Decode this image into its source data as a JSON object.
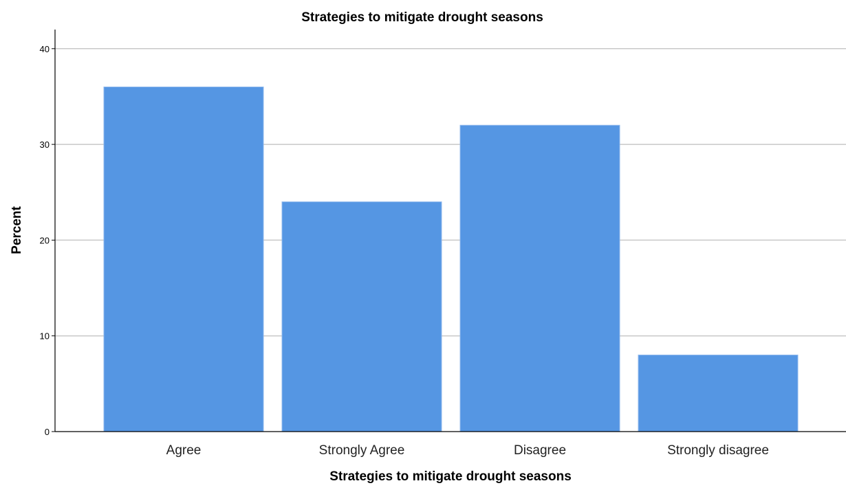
{
  "chart_data": {
    "type": "bar",
    "title": "Strategies to mitigate drought seasons",
    "xlabel": "Strategies to mitigate drought seasons",
    "ylabel": "Percent",
    "categories": [
      "Agree",
      "Strongly Agree",
      "Disagree",
      "Strongly disagree"
    ],
    "values": [
      36,
      24,
      32,
      8
    ],
    "ylim": [
      0,
      42
    ],
    "yticks": [
      0,
      10,
      20,
      30,
      40
    ],
    "ytick_labels": [
      "0",
      "10",
      "20",
      "30",
      "40"
    ],
    "grid": true,
    "legend": "none",
    "bar_color": "#5596e3",
    "bar_edge_color": "#8fb8ec",
    "grid_color": "#c8c8c8",
    "axis_color": "#000000"
  }
}
